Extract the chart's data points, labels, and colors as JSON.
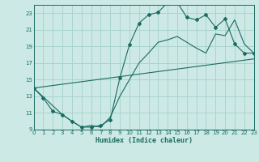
{
  "xlabel": "Humidex (Indice chaleur)",
  "bg_color": "#cce9e5",
  "grid_color": "#aad4cf",
  "line_color": "#1a6b60",
  "xlim": [
    0,
    23
  ],
  "ylim": [
    9,
    24
  ],
  "xticks": [
    0,
    1,
    2,
    3,
    4,
    5,
    6,
    7,
    8,
    9,
    10,
    11,
    12,
    13,
    14,
    15,
    16,
    17,
    18,
    19,
    20,
    21,
    22,
    23
  ],
  "yticks": [
    9,
    11,
    13,
    15,
    17,
    19,
    21,
    23
  ],
  "curve1_x": [
    0,
    1,
    2,
    3,
    4,
    5,
    6,
    7,
    8,
    9,
    10,
    11,
    12,
    13,
    14,
    15,
    16,
    17,
    18,
    19,
    20,
    21,
    22,
    23
  ],
  "curve1_y": [
    14.0,
    12.8,
    11.2,
    10.8,
    10.0,
    9.3,
    9.3,
    9.5,
    10.2,
    15.2,
    19.2,
    21.8,
    22.8,
    23.1,
    24.3,
    24.3,
    22.5,
    22.2,
    22.8,
    21.3,
    22.3,
    19.3,
    18.2,
    18.2
  ],
  "curve2_x": [
    0,
    23
  ],
  "curve2_y": [
    14.0,
    17.5
  ],
  "curve3_x": [
    0,
    3,
    4,
    5,
    6,
    7,
    8,
    9,
    10,
    11,
    12,
    13,
    14,
    15,
    16,
    17,
    18,
    19,
    20,
    21,
    22,
    23
  ],
  "curve3_y": [
    14.0,
    10.8,
    10.0,
    9.3,
    9.5,
    9.3,
    10.5,
    13.0,
    15.0,
    17.0,
    18.2,
    19.5,
    19.8,
    20.2,
    19.5,
    18.8,
    18.2,
    20.5,
    20.3,
    22.2,
    19.3,
    18.2
  ]
}
